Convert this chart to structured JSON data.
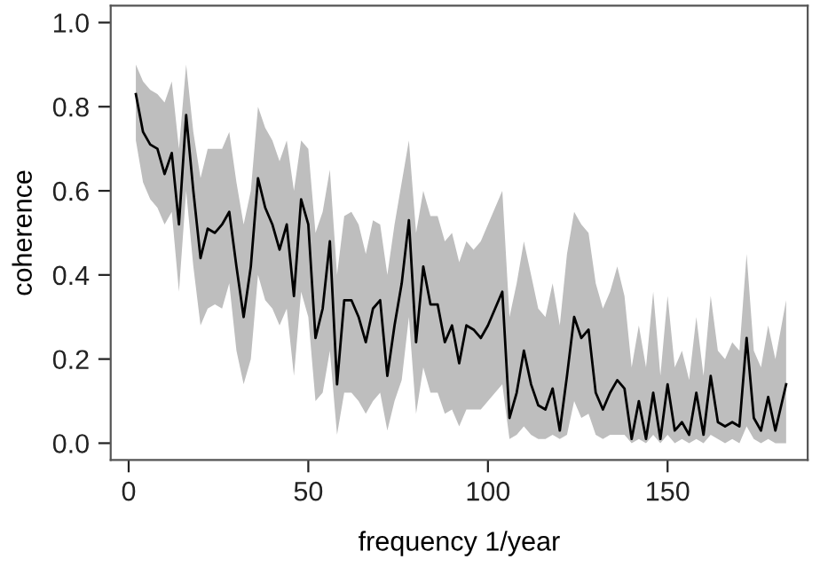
{
  "chart_data": {
    "type": "line",
    "xlabel": "frequency 1/year",
    "ylabel": "coherence",
    "xlim": [
      -5,
      189
    ],
    "ylim": [
      -0.04,
      1.04
    ],
    "xticks": [
      0,
      50,
      100,
      150
    ],
    "yticks": [
      {
        "value": 0,
        "label": "0.0"
      },
      {
        "value": 0.2,
        "label": "0.2"
      },
      {
        "value": 0.4,
        "label": "0.4"
      },
      {
        "value": 0.6,
        "label": "0.6"
      },
      {
        "value": 0.8,
        "label": "0.8"
      },
      {
        "value": 1.0,
        "label": "1.0"
      }
    ],
    "grid": false,
    "legend": false,
    "marker": "none",
    "line_style": "solid",
    "series": [
      {
        "color": "#000000",
        "x": [
          2,
          4,
          6,
          8,
          10,
          12,
          14,
          16,
          18,
          20,
          22,
          24,
          26,
          28,
          30,
          32,
          34,
          36,
          38,
          40,
          42,
          44,
          46,
          48,
          50,
          52,
          54,
          56,
          58,
          60,
          62,
          64,
          66,
          68,
          70,
          72,
          74,
          76,
          78,
          80,
          82,
          84,
          86,
          88,
          90,
          92,
          94,
          96,
          98,
          100,
          102,
          104,
          106,
          108,
          110,
          112,
          114,
          116,
          118,
          120,
          122,
          124,
          126,
          128,
          130,
          132,
          134,
          136,
          138,
          140,
          142,
          144,
          146,
          148,
          150,
          152,
          154,
          156,
          158,
          160,
          162,
          164,
          166,
          168,
          170,
          172,
          174,
          176,
          178,
          180,
          183
        ],
        "values": [
          0.83,
          0.74,
          0.71,
          0.7,
          0.64,
          0.69,
          0.52,
          0.78,
          0.6,
          0.44,
          0.51,
          0.5,
          0.52,
          0.55,
          0.42,
          0.3,
          0.42,
          0.63,
          0.56,
          0.52,
          0.46,
          0.52,
          0.35,
          0.58,
          0.52,
          0.25,
          0.32,
          0.48,
          0.14,
          0.34,
          0.34,
          0.3,
          0.24,
          0.32,
          0.34,
          0.16,
          0.28,
          0.38,
          0.53,
          0.24,
          0.42,
          0.33,
          0.33,
          0.24,
          0.28,
          0.19,
          0.28,
          0.27,
          0.25,
          0.28,
          0.32,
          0.36,
          0.06,
          0.12,
          0.22,
          0.14,
          0.09,
          0.08,
          0.13,
          0.03,
          0.16,
          0.3,
          0.25,
          0.27,
          0.12,
          0.08,
          0.12,
          0.15,
          0.13,
          0.01,
          0.1,
          0.01,
          0.12,
          0.01,
          0.14,
          0.03,
          0.05,
          0.02,
          0.12,
          0.02,
          0.16,
          0.05,
          0.04,
          0.05,
          0.04,
          0.25,
          0.06,
          0.03,
          0.11,
          0.03,
          0.14
        ],
        "upper": [
          0.9,
          0.86,
          0.84,
          0.83,
          0.81,
          0.86,
          0.7,
          0.9,
          0.74,
          0.63,
          0.7,
          0.7,
          0.7,
          0.74,
          0.62,
          0.52,
          0.6,
          0.8,
          0.75,
          0.72,
          0.67,
          0.72,
          0.6,
          0.72,
          0.7,
          0.5,
          0.55,
          0.65,
          0.4,
          0.54,
          0.55,
          0.52,
          0.45,
          0.53,
          0.52,
          0.4,
          0.52,
          0.62,
          0.72,
          0.5,
          0.6,
          0.54,
          0.54,
          0.48,
          0.5,
          0.43,
          0.48,
          0.46,
          0.48,
          0.52,
          0.56,
          0.6,
          0.3,
          0.38,
          0.48,
          0.4,
          0.32,
          0.3,
          0.38,
          0.28,
          0.45,
          0.55,
          0.52,
          0.5,
          0.38,
          0.32,
          0.36,
          0.42,
          0.35,
          0.18,
          0.28,
          0.18,
          0.36,
          0.16,
          0.35,
          0.18,
          0.22,
          0.15,
          0.3,
          0.16,
          0.35,
          0.22,
          0.2,
          0.24,
          0.22,
          0.45,
          0.22,
          0.18,
          0.28,
          0.2,
          0.34
        ],
        "lower": [
          0.72,
          0.62,
          0.58,
          0.56,
          0.52,
          0.55,
          0.36,
          0.6,
          0.42,
          0.28,
          0.32,
          0.33,
          0.32,
          0.38,
          0.22,
          0.14,
          0.2,
          0.4,
          0.34,
          0.32,
          0.28,
          0.32,
          0.16,
          0.36,
          0.3,
          0.1,
          0.12,
          0.22,
          0.02,
          0.12,
          0.12,
          0.1,
          0.07,
          0.1,
          0.12,
          0.03,
          0.1,
          0.15,
          0.3,
          0.07,
          0.18,
          0.12,
          0.12,
          0.07,
          0.08,
          0.04,
          0.08,
          0.08,
          0.08,
          0.1,
          0.12,
          0.14,
          0.01,
          0.02,
          0.04,
          0.02,
          0.01,
          0.01,
          0.02,
          0.01,
          0.02,
          0.1,
          0.06,
          0.07,
          0.02,
          0.01,
          0.02,
          0.02,
          0.02,
          0.0,
          0.01,
          0.0,
          0.02,
          0.0,
          0.02,
          0.0,
          0.01,
          0.0,
          0.01,
          0.0,
          0.02,
          0.01,
          0.0,
          0.01,
          0.0,
          0.04,
          0.01,
          0.0,
          0.01,
          0.0,
          0.0
        ]
      }
    ]
  }
}
